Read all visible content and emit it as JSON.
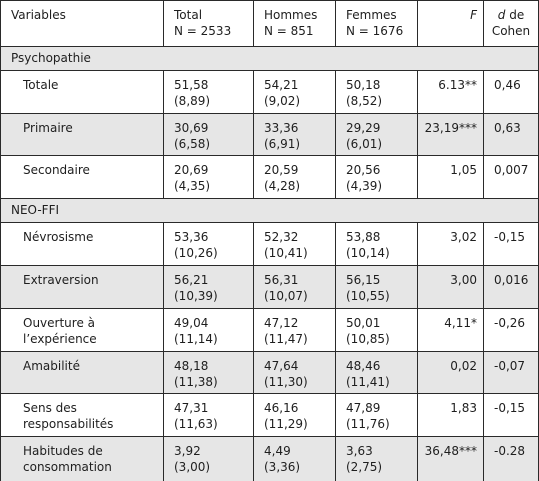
{
  "headers": {
    "variables": "Variables",
    "total": [
      "Total",
      "N = 2533"
    ],
    "hommes": [
      "Hommes",
      "N = 851"
    ],
    "femmes": [
      "Femmes",
      "N = 1676"
    ],
    "f": "F",
    "d_italic": "d",
    "d_rest": " de",
    "d_line2": "Cohen"
  },
  "sections": [
    {
      "title": "Psychopathie",
      "rows": [
        {
          "label": [
            "Totale"
          ],
          "total": [
            "51,58",
            "(8,89)"
          ],
          "hommes": [
            "54,21",
            "(9,02)"
          ],
          "femmes": [
            "50,18",
            "(8,52)"
          ],
          "f": "6.13**",
          "d": "0,46"
        },
        {
          "label": [
            "Primaire"
          ],
          "total": [
            "30,69",
            "(6,58)"
          ],
          "hommes": [
            "33,36",
            "(6,91)"
          ],
          "femmes": [
            "29,29",
            "(6,01)"
          ],
          "f": "23,19***",
          "d": "0,63"
        },
        {
          "label": [
            "Secondaire"
          ],
          "total": [
            "20,69",
            "(4,35)"
          ],
          "hommes": [
            "20,59",
            "(4,28)"
          ],
          "femmes": [
            "20,56",
            "(4,39)"
          ],
          "f": "1,05",
          "d": "0,007"
        }
      ]
    },
    {
      "title": "NEO-FFI",
      "rows": [
        {
          "label": [
            "Névrosisme"
          ],
          "total": [
            "53,36",
            "(10,26)"
          ],
          "hommes": [
            "52,32",
            "(10,41)"
          ],
          "femmes": [
            "53,88",
            "(10,14)"
          ],
          "f": "3,02",
          "d": "-0,15"
        },
        {
          "label": [
            "Extraversion"
          ],
          "total": [
            "56,21",
            "(10,39)"
          ],
          "hommes": [
            "56,31",
            "(10,07)"
          ],
          "femmes": [
            "56,15",
            "(10,55)"
          ],
          "f": "3,00",
          "d": "0,016"
        },
        {
          "label": [
            "Ouverture à",
            "l’expérience"
          ],
          "total": [
            "49,04",
            "(11,14)"
          ],
          "hommes": [
            "47,12",
            "(11,47)"
          ],
          "femmes": [
            "50,01",
            "(10,85)"
          ],
          "f": "4,11*",
          "d": "-0,26"
        },
        {
          "label": [
            "Amabilité"
          ],
          "total": [
            "48,18",
            "(11,38)"
          ],
          "hommes": [
            "47,64",
            "(11,30)"
          ],
          "femmes": [
            "48,46",
            "(11,41)"
          ],
          "f": "0,02",
          "d": "-0,07"
        },
        {
          "label": [
            "Sens des",
            "responsabilités"
          ],
          "total": [
            "47,31",
            "(11,63)"
          ],
          "hommes": [
            "46,16",
            "(11,29)"
          ],
          "femmes": [
            "47,89",
            "(11,76)"
          ],
          "f": "1,83",
          "d": "-0,15"
        },
        {
          "label": [
            "Habitudes de",
            "consommation"
          ],
          "total": [
            "3,92",
            "(3,00)"
          ],
          "hommes": [
            "4,49",
            "(3,36)"
          ],
          "femmes": [
            "3,63",
            "(2,75)"
          ],
          "f": "36,48***",
          "d": "-0.28"
        }
      ]
    }
  ]
}
